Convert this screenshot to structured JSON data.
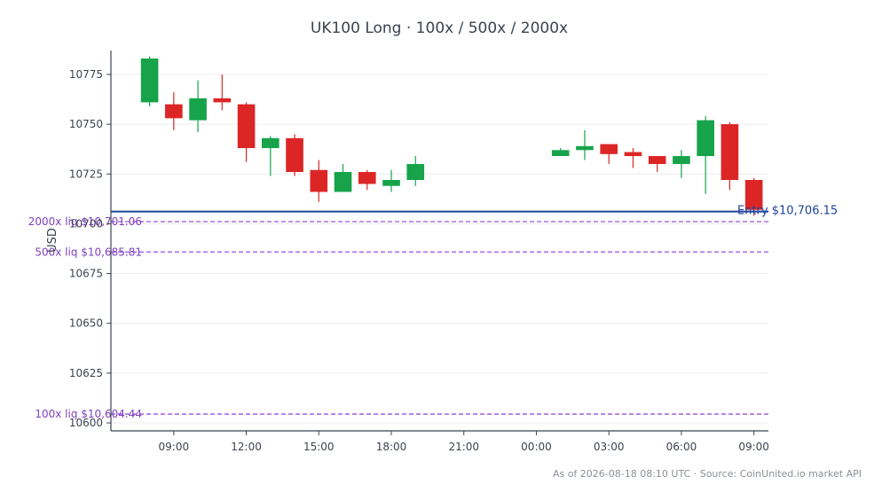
{
  "chart_data": {
    "type": "candlestick",
    "title": "UK100 Long · 100x / 500x / 2000x",
    "ylabel": "USD",
    "xlabel": "",
    "ylim": [
      10596,
      10787
    ],
    "yticks": [
      10600,
      10625,
      10650,
      10675,
      10700,
      10725,
      10750,
      10775
    ],
    "xticks": [
      {
        "label": "09:00",
        "hour": 1
      },
      {
        "label": "12:00",
        "hour": 4
      },
      {
        "label": "15:00",
        "hour": 7
      },
      {
        "label": "18:00",
        "hour": 10
      },
      {
        "label": "21:00",
        "hour": 13
      },
      {
        "label": "00:00",
        "hour": 16
      },
      {
        "label": "03:00",
        "hour": 19
      },
      {
        "label": "06:00",
        "hour": 22
      },
      {
        "label": "09:00",
        "hour": 25
      }
    ],
    "xlim": [
      -1.6,
      25.6
    ],
    "candles": [
      {
        "hour": 0,
        "open": 10761,
        "high": 10784,
        "low": 10759,
        "close": 10783
      },
      {
        "hour": 1,
        "open": 10760,
        "high": 10766,
        "low": 10747,
        "close": 10753
      },
      {
        "hour": 2,
        "open": 10752,
        "high": 10772,
        "low": 10746,
        "close": 10763
      },
      {
        "hour": 3,
        "open": 10763,
        "high": 10775,
        "low": 10757,
        "close": 10761
      },
      {
        "hour": 4,
        "open": 10760,
        "high": 10761,
        "low": 10731,
        "close": 10738
      },
      {
        "hour": 5,
        "open": 10738,
        "high": 10744,
        "low": 10724,
        "close": 10743
      },
      {
        "hour": 6,
        "open": 10743,
        "high": 10745,
        "low": 10724,
        "close": 10726
      },
      {
        "hour": 7,
        "open": 10727,
        "high": 10732,
        "low": 10711,
        "close": 10716
      },
      {
        "hour": 8,
        "open": 10716,
        "high": 10730,
        "low": 10716,
        "close": 10726
      },
      {
        "hour": 9,
        "open": 10726,
        "high": 10727,
        "low": 10717,
        "close": 10720
      },
      {
        "hour": 10,
        "open": 10719,
        "high": 10727,
        "low": 10716,
        "close": 10722
      },
      {
        "hour": 11,
        "open": 10722,
        "high": 10734,
        "low": 10719,
        "close": 10730
      },
      {
        "hour": 17,
        "open": 10734,
        "high": 10738,
        "low": 10734,
        "close": 10737
      },
      {
        "hour": 18,
        "open": 10737,
        "high": 10747,
        "low": 10732,
        "close": 10739
      },
      {
        "hour": 19,
        "open": 10740,
        "high": 10740,
        "low": 10730,
        "close": 10735
      },
      {
        "hour": 20,
        "open": 10736,
        "high": 10738,
        "low": 10728,
        "close": 10734
      },
      {
        "hour": 21,
        "open": 10734,
        "high": 10734,
        "low": 10726,
        "close": 10730
      },
      {
        "hour": 22,
        "open": 10730,
        "high": 10737,
        "low": 10723,
        "close": 10734
      },
      {
        "hour": 23,
        "open": 10734,
        "high": 10754,
        "low": 10715,
        "close": 10752
      },
      {
        "hour": 24,
        "open": 10750,
        "high": 10751,
        "low": 10717,
        "close": 10722
      },
      {
        "hour": 25,
        "open": 10722,
        "high": 10723,
        "low": 10704,
        "close": 10707
      }
    ],
    "entry": {
      "label": "Entry $10,706.15",
      "value": 10706.15
    },
    "liquidations": [
      {
        "label": "2000x liq $10,701.06",
        "value": 10701.06
      },
      {
        "label": "500x liq $10,685.81",
        "value": 10685.81
      },
      {
        "label": "100x liq $10,604.44",
        "value": 10604.44
      }
    ],
    "colors": {
      "up": "#16a34a",
      "down": "#dc2626",
      "entry": "#1f4399",
      "liq": "#9b51e0",
      "grid": "#ececec",
      "axis": "#3b4351"
    },
    "grid": true
  },
  "footer": {
    "text": "As of 2026-08-18 08:10 UTC · Source: CoinUnited.io market API"
  }
}
